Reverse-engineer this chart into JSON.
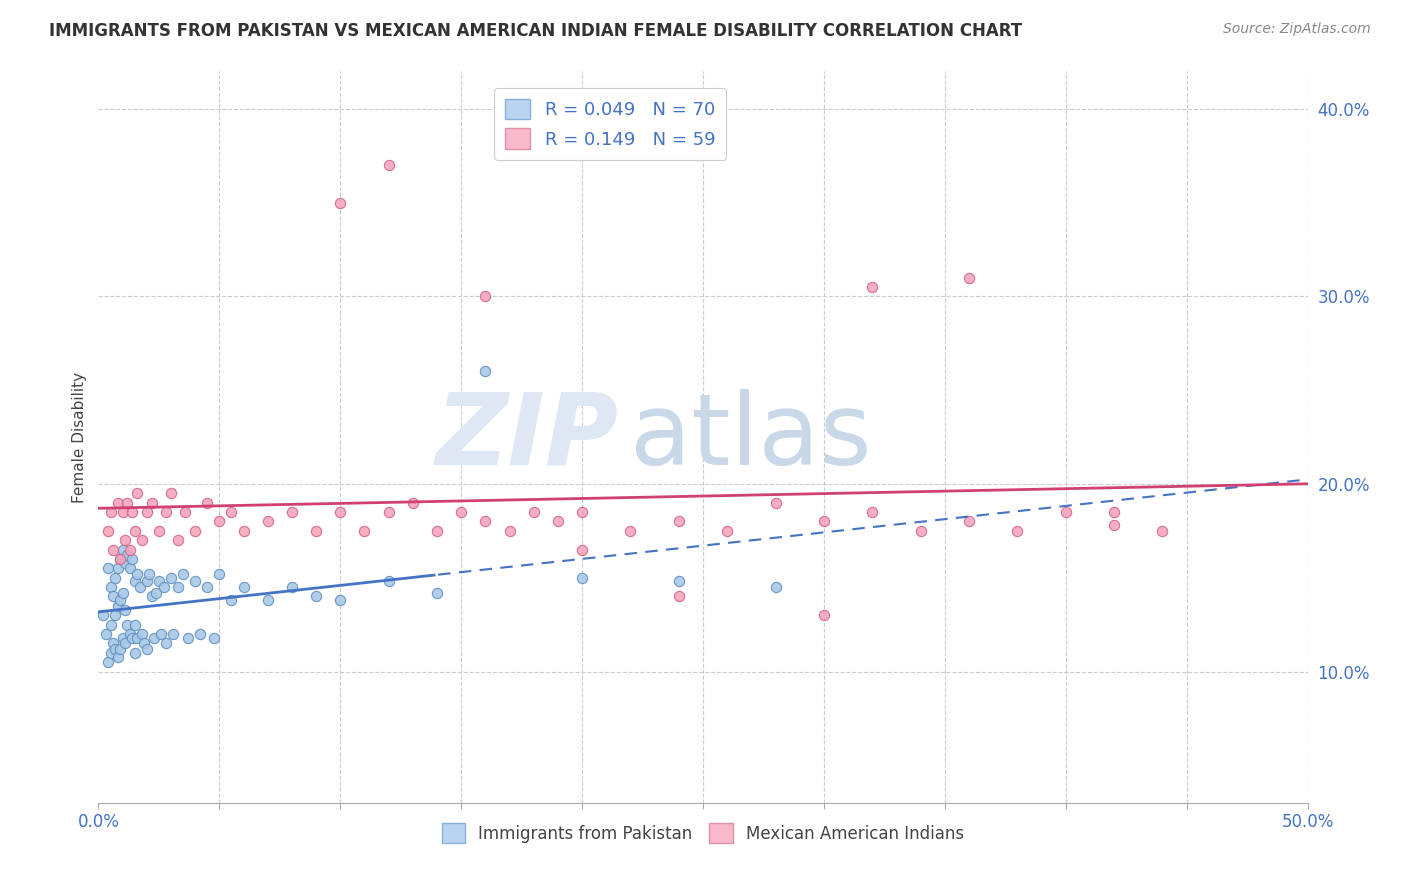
{
  "title": "IMMIGRANTS FROM PAKISTAN VS MEXICAN AMERICAN INDIAN FEMALE DISABILITY CORRELATION CHART",
  "source": "Source: ZipAtlas.com",
  "ylabel": "Female Disability",
  "xmin": 0.0,
  "xmax": 0.5,
  "ymin": 0.03,
  "ymax": 0.42,
  "yticks": [
    0.1,
    0.2,
    0.3,
    0.4
  ],
  "ytick_labels": [
    "10.0%",
    "20.0%",
    "30.0%",
    "40.0%"
  ],
  "series1_color": "#a8c8e8",
  "series2_color": "#f4a0b8",
  "series1_edge": "#6090c0",
  "series2_edge": "#d06080",
  "trendline1_color": "#4472c4",
  "trendline2_color": "#d04070",
  "background_color": "#ffffff",
  "grid_color": "#cccccc",
  "watermark_zip_color": "#dde8f4",
  "watermark_atlas_color": "#c8d8e8",
  "pak_x": [
    0.002,
    0.003,
    0.004,
    0.004,
    0.005,
    0.005,
    0.005,
    0.006,
    0.006,
    0.007,
    0.007,
    0.007,
    0.008,
    0.008,
    0.008,
    0.009,
    0.009,
    0.009,
    0.01,
    0.01,
    0.01,
    0.011,
    0.011,
    0.011,
    0.012,
    0.012,
    0.013,
    0.013,
    0.014,
    0.014,
    0.015,
    0.015,
    0.015,
    0.016,
    0.016,
    0.017,
    0.018,
    0.019,
    0.02,
    0.02,
    0.021,
    0.022,
    0.023,
    0.024,
    0.025,
    0.026,
    0.027,
    0.028,
    0.03,
    0.031,
    0.033,
    0.035,
    0.037,
    0.04,
    0.042,
    0.045,
    0.048,
    0.05,
    0.055,
    0.06,
    0.07,
    0.08,
    0.09,
    0.1,
    0.12,
    0.14,
    0.16,
    0.2,
    0.24,
    0.28
  ],
  "pak_y": [
    0.13,
    0.12,
    0.155,
    0.105,
    0.145,
    0.125,
    0.11,
    0.14,
    0.115,
    0.15,
    0.13,
    0.112,
    0.155,
    0.135,
    0.108,
    0.16,
    0.138,
    0.112,
    0.165,
    0.142,
    0.118,
    0.158,
    0.133,
    0.115,
    0.162,
    0.125,
    0.155,
    0.12,
    0.16,
    0.118,
    0.148,
    0.125,
    0.11,
    0.152,
    0.118,
    0.145,
    0.12,
    0.115,
    0.148,
    0.112,
    0.152,
    0.14,
    0.118,
    0.142,
    0.148,
    0.12,
    0.145,
    0.115,
    0.15,
    0.12,
    0.145,
    0.152,
    0.118,
    0.148,
    0.12,
    0.145,
    0.118,
    0.152,
    0.138,
    0.145,
    0.138,
    0.145,
    0.14,
    0.138,
    0.148,
    0.142,
    0.26,
    0.15,
    0.148,
    0.145
  ],
  "mex_x": [
    0.004,
    0.005,
    0.006,
    0.008,
    0.009,
    0.01,
    0.011,
    0.012,
    0.013,
    0.014,
    0.015,
    0.016,
    0.018,
    0.02,
    0.022,
    0.025,
    0.028,
    0.03,
    0.033,
    0.036,
    0.04,
    0.045,
    0.05,
    0.055,
    0.06,
    0.07,
    0.08,
    0.09,
    0.1,
    0.11,
    0.12,
    0.13,
    0.14,
    0.15,
    0.16,
    0.17,
    0.18,
    0.19,
    0.2,
    0.22,
    0.24,
    0.26,
    0.28,
    0.3,
    0.32,
    0.34,
    0.36,
    0.38,
    0.4,
    0.42,
    0.44,
    0.1,
    0.12,
    0.16,
    0.2,
    0.24,
    0.3,
    0.32,
    0.36,
    0.42
  ],
  "mex_y": [
    0.175,
    0.185,
    0.165,
    0.19,
    0.16,
    0.185,
    0.17,
    0.19,
    0.165,
    0.185,
    0.175,
    0.195,
    0.17,
    0.185,
    0.19,
    0.175,
    0.185,
    0.195,
    0.17,
    0.185,
    0.175,
    0.19,
    0.18,
    0.185,
    0.175,
    0.18,
    0.185,
    0.175,
    0.185,
    0.175,
    0.185,
    0.19,
    0.175,
    0.185,
    0.18,
    0.175,
    0.185,
    0.18,
    0.185,
    0.175,
    0.18,
    0.175,
    0.19,
    0.18,
    0.185,
    0.175,
    0.18,
    0.175,
    0.185,
    0.178,
    0.175,
    0.35,
    0.37,
    0.3,
    0.165,
    0.14,
    0.13,
    0.305,
    0.31,
    0.185
  ]
}
